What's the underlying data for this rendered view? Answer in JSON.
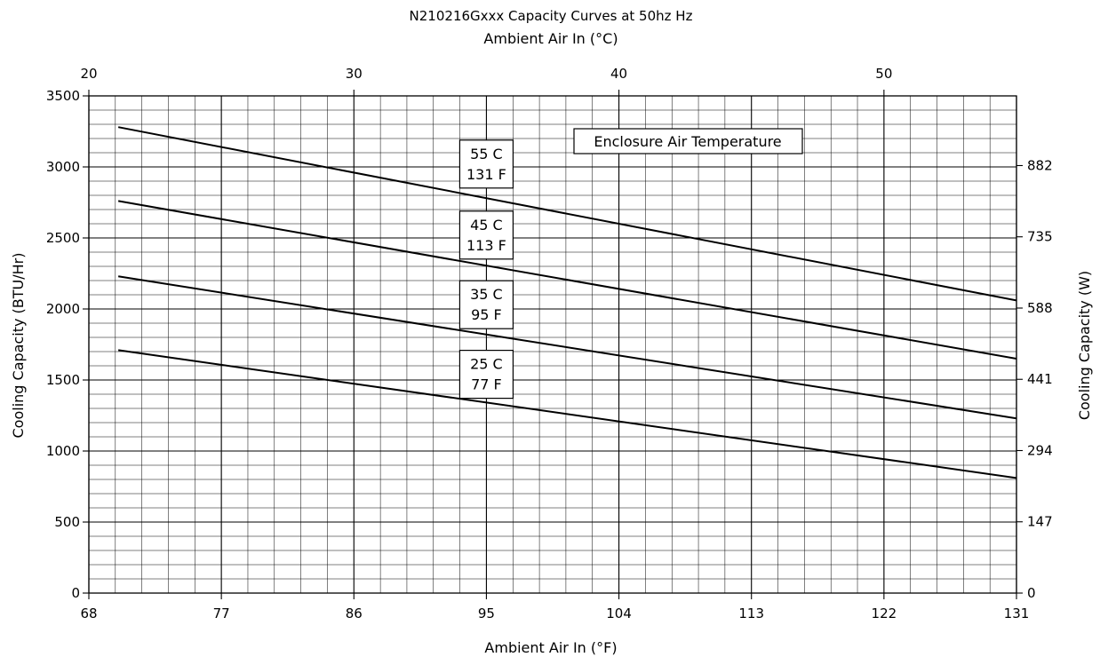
{
  "chart_data": {
    "type": "line",
    "title": "N210216Gxxx Capacity Curves at 50hz Hz",
    "xlabel": "Ambient Air In (°F)",
    "x2label": "Ambient Air In (°C)",
    "ylabel": "Cooling Capacity (BTU/Hr)",
    "y2label": "Cooling Capacity (W)",
    "xlim": [
      68,
      131
    ],
    "ylim": [
      0,
      3500
    ],
    "xticks": [
      68,
      77,
      86,
      95,
      104,
      113,
      122,
      131
    ],
    "x2ticks": [
      20,
      30,
      40,
      50
    ],
    "yticks": [
      0,
      500,
      1000,
      1500,
      2000,
      2500,
      3000,
      3500
    ],
    "y2ticks": [
      0,
      147,
      294,
      441,
      588,
      735,
      882
    ],
    "grid": true,
    "legend_title": "Enclosure Air Temperature",
    "series": [
      {
        "label_lines": [
          "55 C",
          "131 F"
        ],
        "x": [
          70,
          131
        ],
        "y": [
          3280,
          2060
        ],
        "label_x": 95,
        "label_y": 3020
      },
      {
        "label_lines": [
          "45 C",
          "113 F"
        ],
        "x": [
          70,
          131
        ],
        "y": [
          2760,
          1650
        ],
        "label_x": 95,
        "label_y": 2520
      },
      {
        "label_lines": [
          "35 C",
          "95 F"
        ],
        "x": [
          70,
          131
        ],
        "y": [
          2230,
          1230
        ],
        "label_x": 95,
        "label_y": 2030
      },
      {
        "label_lines": [
          "25 C",
          "77 F"
        ],
        "x": [
          70,
          131
        ],
        "y": [
          1710,
          810
        ],
        "label_x": 95,
        "label_y": 1540
      }
    ]
  }
}
